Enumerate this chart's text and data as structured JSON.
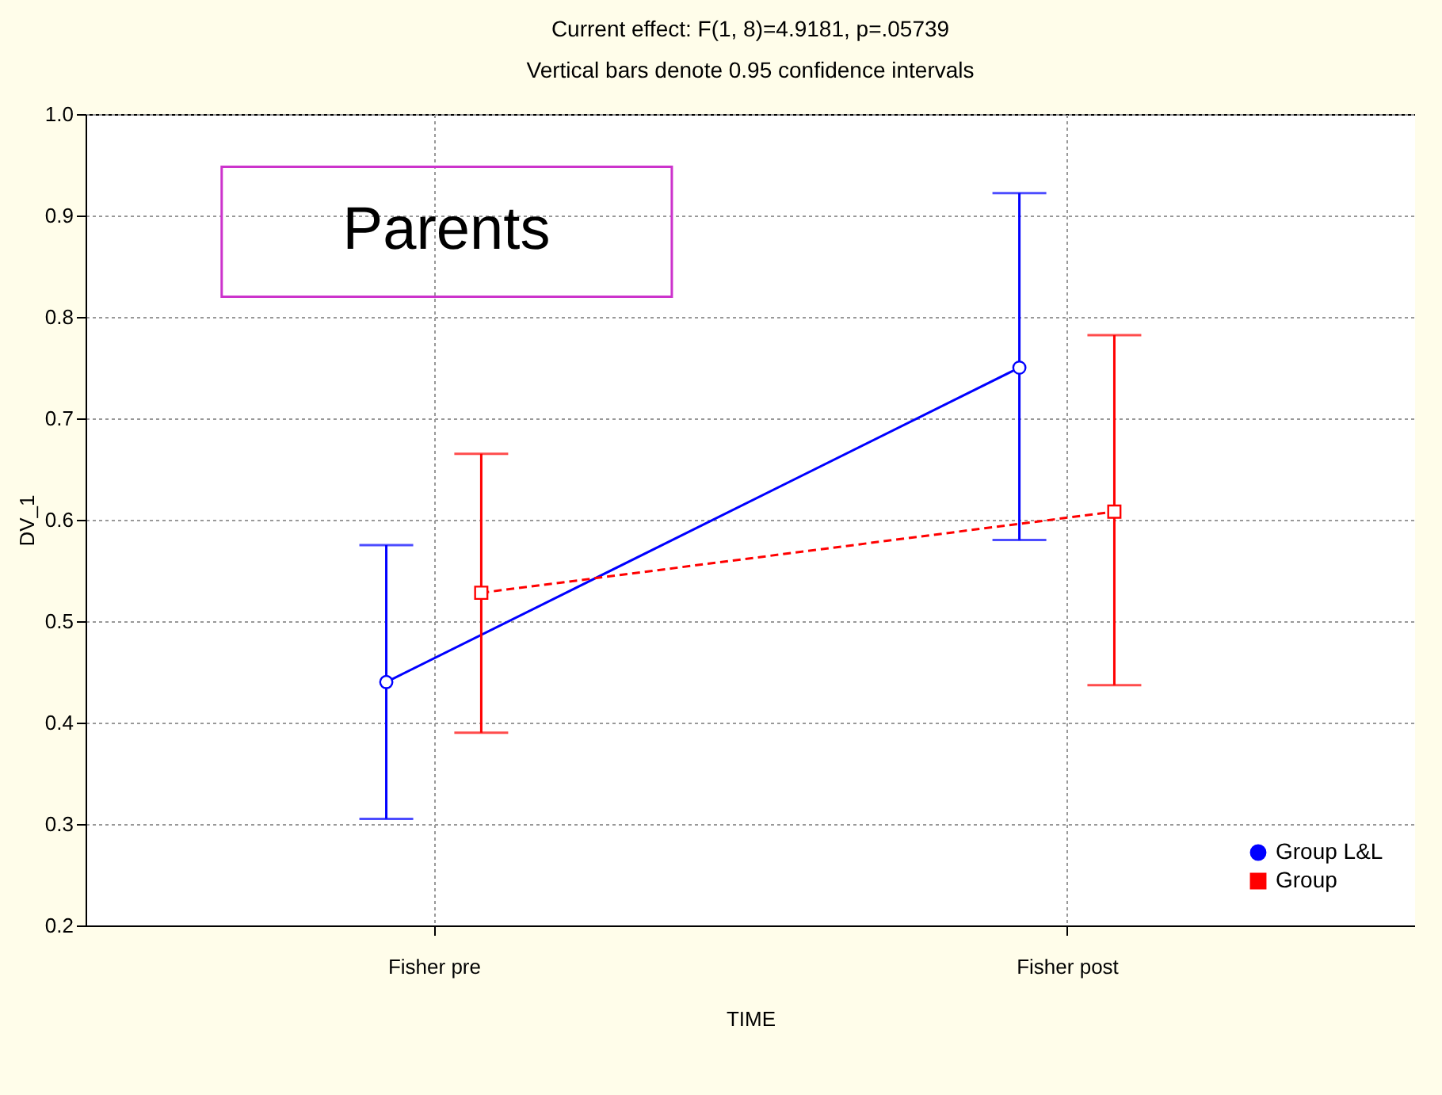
{
  "chart_data": {
    "type": "line",
    "title": "Current effect: F(1, 8)=4.9181, p=.05739",
    "subtitle": "Vertical bars denote 0.95 confidence intervals",
    "xlabel": "TIME",
    "ylabel": "DV_1",
    "annotations": [
      "Parents"
    ],
    "categories": [
      "Fisher pre",
      "Fisher post"
    ],
    "series": [
      {
        "name": "Group L&L",
        "color": "#0000ff",
        "values": [
          0.44,
          0.75
        ],
        "errors": [
          [
            0.305,
            0.575
          ],
          [
            0.58,
            0.922
          ]
        ],
        "marker": "circle",
        "line_style": "solid"
      },
      {
        "name": "Group",
        "color": "#ff0000",
        "values": [
          0.528,
          0.608
        ],
        "errors": [
          [
            0.39,
            0.665
          ],
          [
            0.437,
            0.782
          ]
        ],
        "marker": "square",
        "line_style": "dashed"
      }
    ],
    "ylim": [
      0.2,
      1.0
    ],
    "yticks": [
      0.2,
      0.3,
      0.4,
      0.5,
      0.6,
      0.7,
      0.8,
      0.9,
      {
        "value": 1.0,
        "label": "1.0"
      }
    ],
    "grid": true,
    "legend": "bottom right"
  }
}
